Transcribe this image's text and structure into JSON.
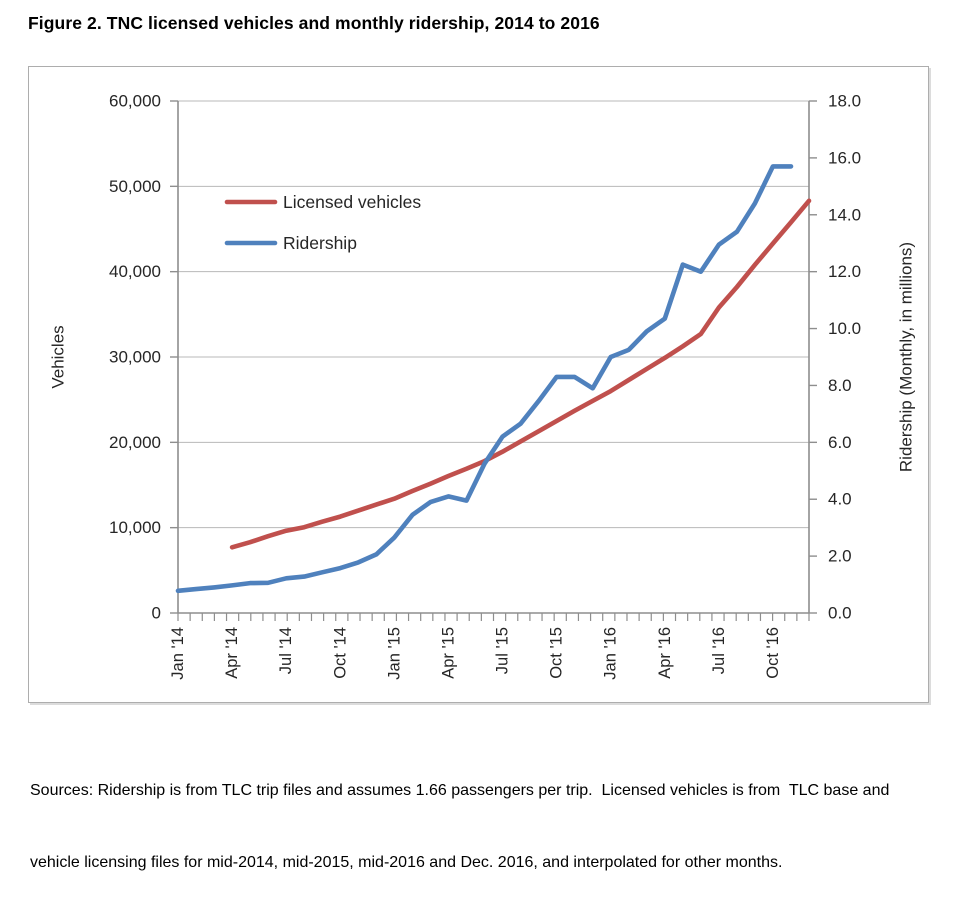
{
  "figure": {
    "title": "Figure 2. TNC licensed vehicles and monthly ridership, 2014 to 2016",
    "source_lines": [
      "Sources: Ridership is from TLC trip files and assumes 1.66 passengers per trip.  Licensed vehicles is from  TLC base and",
      "vehicle licensing files for mid-2014, mid-2015, mid-2016 and Dec. 2016, and interpolated for other months."
    ]
  },
  "chart_data": {
    "type": "line",
    "title": "Figure 2. TNC licensed vehicles and monthly ridership, 2014 to 2016",
    "grid": "horizontal",
    "legend_position": "inside-top-left",
    "x_categories": [
      "Jan '14",
      "Feb '14",
      "Mar '14",
      "Apr '14",
      "May '14",
      "Jun '14",
      "Jul '14",
      "Aug '14",
      "Sep '14",
      "Oct '14",
      "Nov '14",
      "Dec '14",
      "Jan '15",
      "Feb '15",
      "Mar '15",
      "Apr '15",
      "May '15",
      "Jun '15",
      "Jul '15",
      "Aug '15",
      "Sep '15",
      "Oct '15",
      "Nov '15",
      "Dec '15",
      "Jan '16",
      "Feb '16",
      "Mar '16",
      "Apr '16",
      "May '16",
      "Jun '16",
      "Jul '16",
      "Aug '16",
      "Sep '16",
      "Oct '16",
      "Nov '16",
      "Dec '16"
    ],
    "x_axis_tick_label_every": 3,
    "left_axis": {
      "label": "Vehicles",
      "min": 0,
      "max": 60000,
      "step": 10000,
      "tick_labels": [
        "0",
        "10,000",
        "20,000",
        "30,000",
        "40,000",
        "50,000",
        "60,000"
      ]
    },
    "right_axis": {
      "label": "Ridership (Monthly, in millions)",
      "min": 0,
      "max": 18,
      "step": 2,
      "tick_labels": [
        "0.0",
        "2.0",
        "4.0",
        "6.0",
        "8.0",
        "10.0",
        "12.0",
        "14.0",
        "16.0",
        "18.0"
      ]
    },
    "series": [
      {
        "name": "Licensed vehicles",
        "axis": "left",
        "color": "#C0504D",
        "start_month_index": 3,
        "start_month": "Apr '14",
        "end_month": "Dec '16",
        "values": [
          7700,
          8300,
          9000,
          9650,
          10050,
          10700,
          11300,
          12000,
          12700,
          13400,
          14300,
          15150,
          16050,
          16900,
          17800,
          18900,
          20100,
          21300,
          22500,
          23700,
          24850,
          26000,
          27300,
          28600,
          29900,
          31250,
          32700,
          35800,
          38200,
          40800,
          43300,
          45800,
          48300
        ]
      },
      {
        "name": "Ridership",
        "axis": "right",
        "color": "#4F81BD",
        "start_month_index": 0,
        "start_month": "Jan '14",
        "end_month": "Nov '16",
        "values": [
          0.78,
          0.84,
          0.9,
          0.97,
          1.05,
          1.06,
          1.22,
          1.28,
          1.43,
          1.58,
          1.78,
          2.06,
          2.65,
          3.45,
          3.9,
          4.1,
          3.95,
          5.25,
          6.2,
          6.65,
          7.45,
          8.3,
          8.3,
          7.9,
          9.0,
          9.25,
          9.9,
          10.35,
          12.25,
          12.0,
          12.95,
          13.4,
          14.4,
          15.7,
          15.7
        ]
      }
    ],
    "style": {
      "gridline_color": "#B8B8B8",
      "axis_color": "#8E8E8E",
      "text_color": "#262626"
    }
  }
}
